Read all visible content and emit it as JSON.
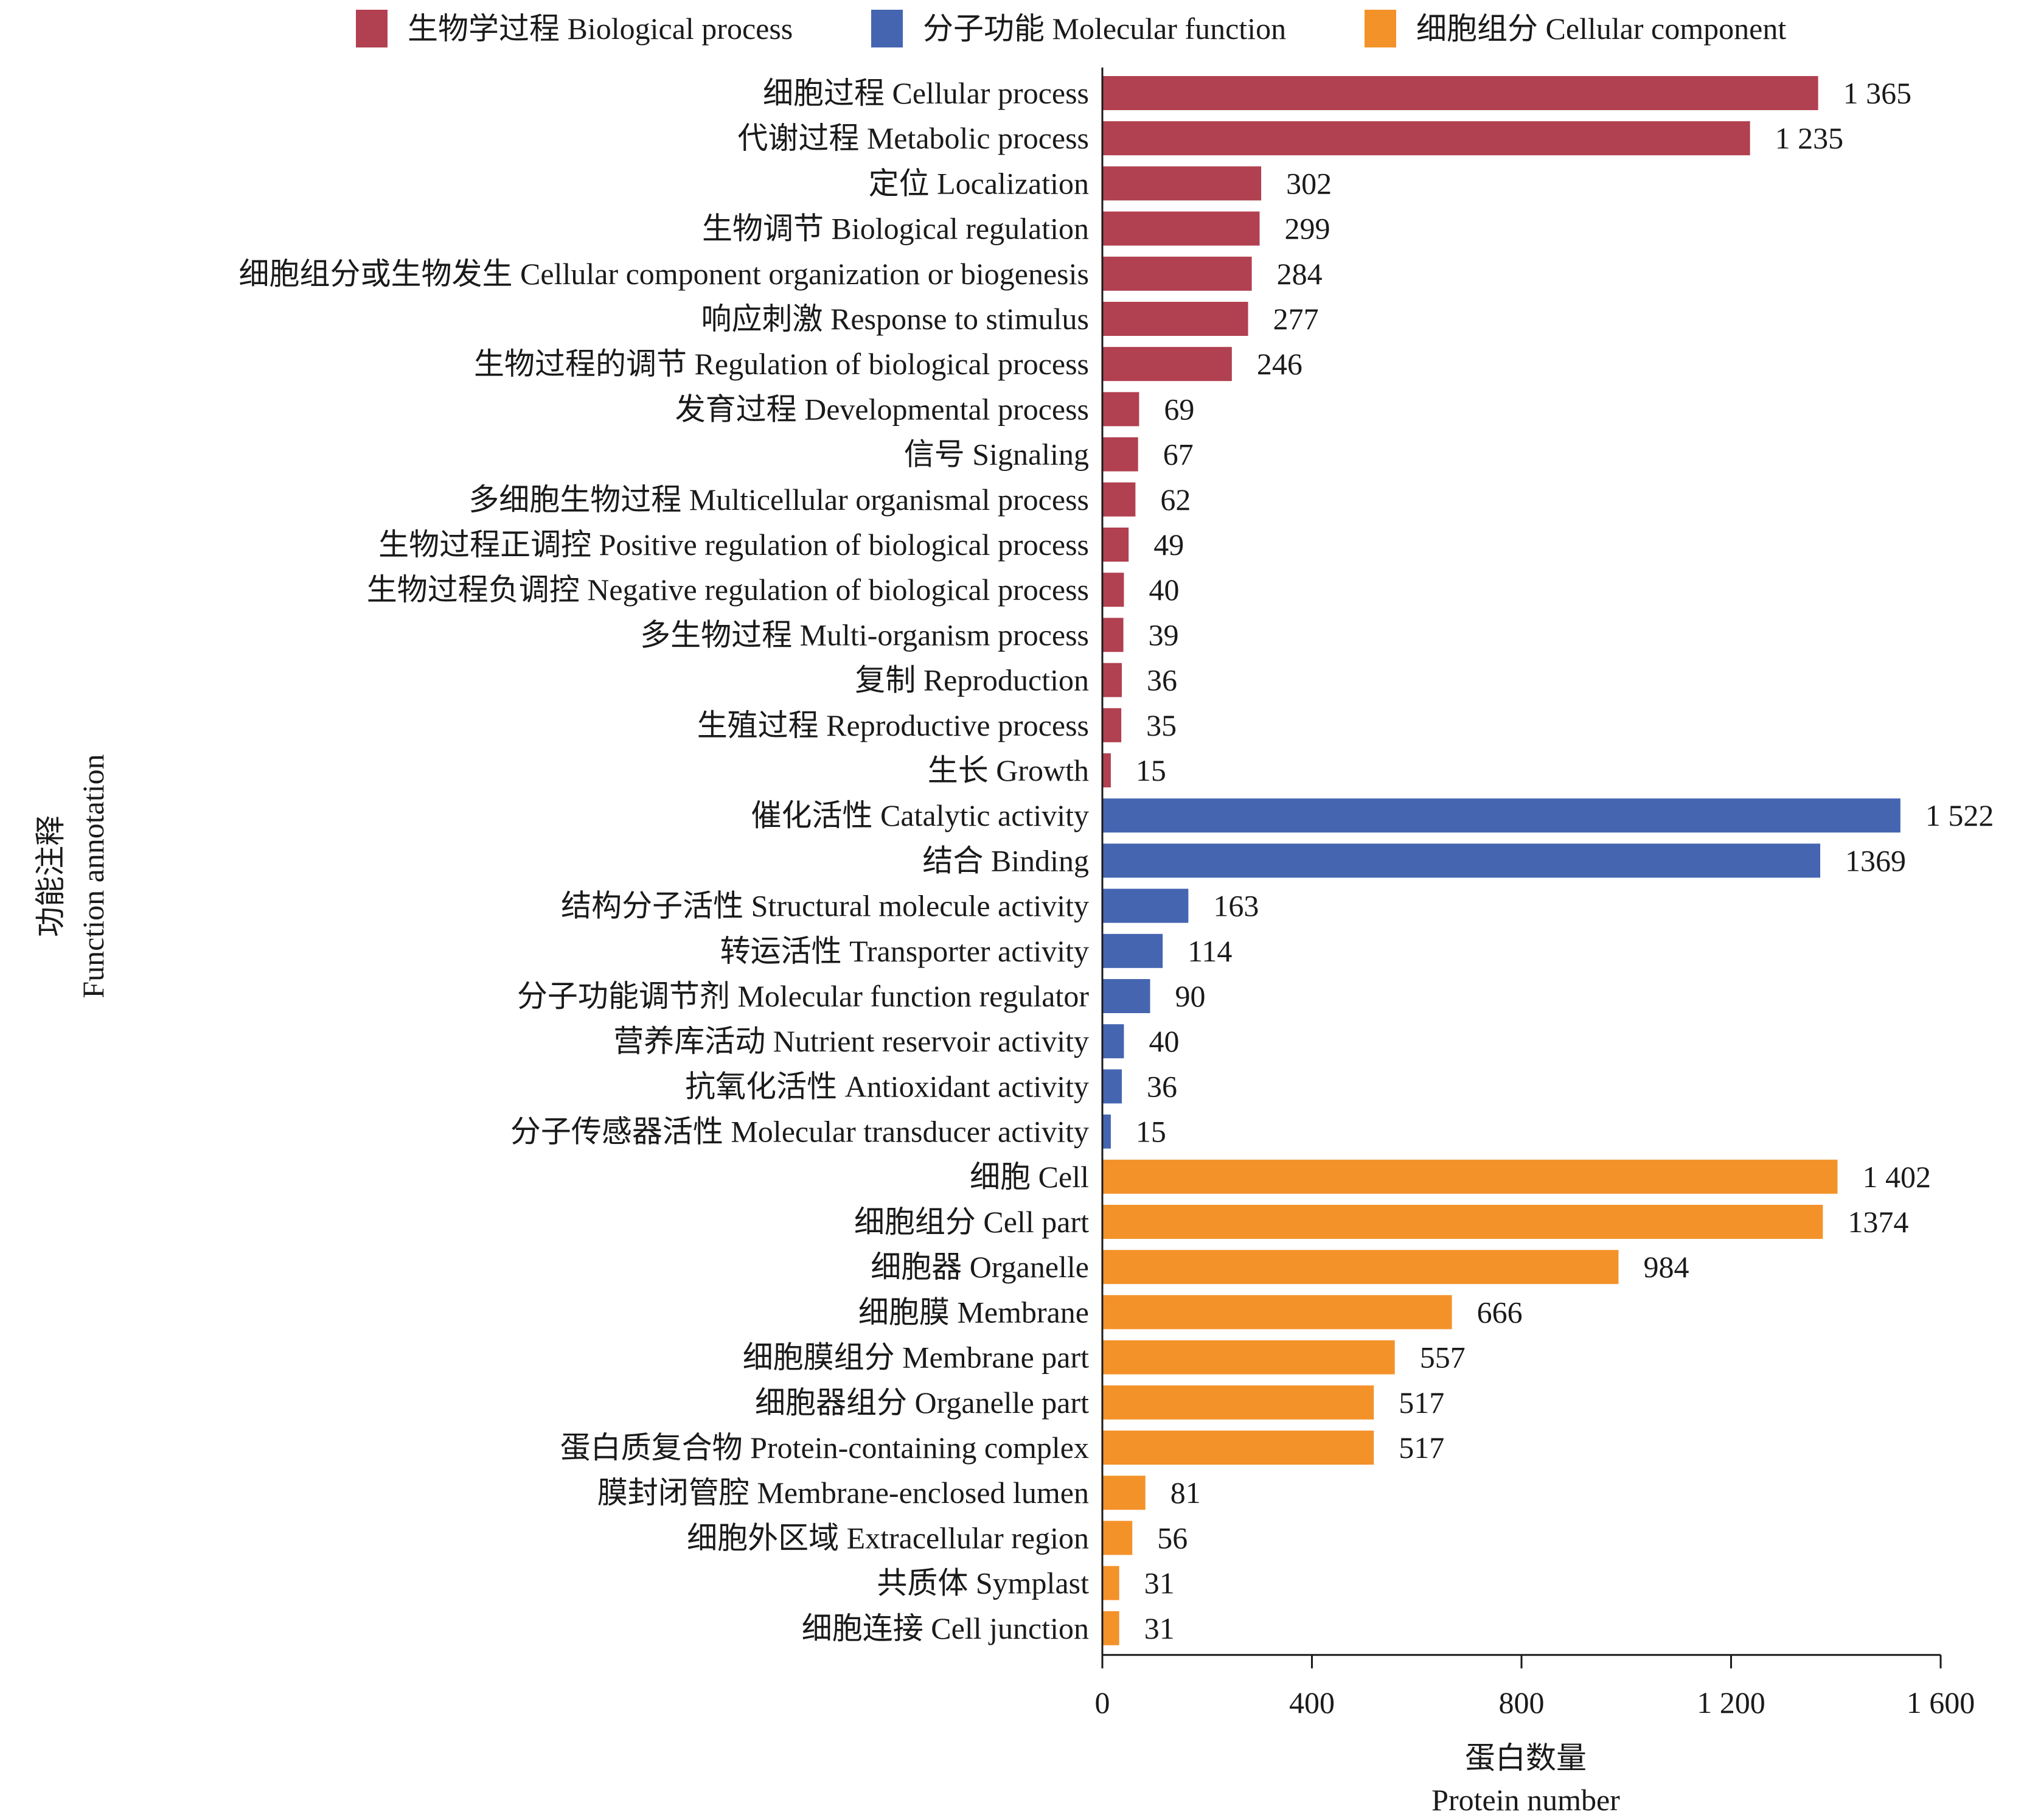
{
  "chart_data": {
    "type": "bar",
    "orientation": "horizontal",
    "title": "",
    "xlabel": "蛋白数量",
    "xlabel_en": "Protein number",
    "ylabel": "功能注释",
    "ylabel_en": "Function annotation",
    "xlim": [
      0,
      1600
    ],
    "xticks": [
      0,
      400,
      800,
      1200,
      1600
    ],
    "xtick_labels": [
      "0",
      "400",
      "800",
      "1 200",
      "1 600"
    ],
    "grid": false,
    "legend_position": "top",
    "series": [
      {
        "name": "生物学过程 Biological process",
        "color": "#b14050",
        "items": [
          {
            "label": "细胞过程 Cellular process",
            "value": 1365,
            "value_label": "1 365"
          },
          {
            "label": "代谢过程 Metabolic process",
            "value": 1235,
            "value_label": "1 235"
          },
          {
            "label": "定位 Localization",
            "value": 302,
            "value_label": "302"
          },
          {
            "label": "生物调节 Biological regulation",
            "value": 299,
            "value_label": "299"
          },
          {
            "label": "细胞组分或生物发生 Cellular component organization or biogenesis",
            "value": 284,
            "value_label": "284"
          },
          {
            "label": "响应刺激 Response to stimulus",
            "value": 277,
            "value_label": "277"
          },
          {
            "label": "生物过程的调节 Regulation of biological process",
            "value": 246,
            "value_label": "246"
          },
          {
            "label": "发育过程 Developmental process",
            "value": 69,
            "value_label": "69"
          },
          {
            "label": "信号 Signaling",
            "value": 67,
            "value_label": "67"
          },
          {
            "label": "多细胞生物过程 Multicellular organismal process",
            "value": 62,
            "value_label": "62"
          },
          {
            "label": "生物过程正调控 Positive regulation of biological process",
            "value": 49,
            "value_label": "49"
          },
          {
            "label": "生物过程负调控 Negative regulation of biological process",
            "value": 40,
            "value_label": "40"
          },
          {
            "label": "多生物过程 Multi-organism process",
            "value": 39,
            "value_label": "39"
          },
          {
            "label": "复制 Reproduction",
            "value": 36,
            "value_label": "36"
          },
          {
            "label": "生殖过程 Reproductive process",
            "value": 35,
            "value_label": "35"
          },
          {
            "label": "生长 Growth",
            "value": 15,
            "value_label": "15"
          }
        ]
      },
      {
        "name": "分子功能 Molecular function",
        "color": "#4565b1",
        "items": [
          {
            "label": "催化活性 Catalytic activity",
            "value": 1522,
            "value_label": "1 522"
          },
          {
            "label": "结合 Binding",
            "value": 1369,
            "value_label": "1369"
          },
          {
            "label": "结构分子活性 Structural molecule activity",
            "value": 163,
            "value_label": "163"
          },
          {
            "label": "转运活性 Transporter activity",
            "value": 114,
            "value_label": "114"
          },
          {
            "label": "分子功能调节剂 Molecular function regulator",
            "value": 90,
            "value_label": "90"
          },
          {
            "label": "营养库活动 Nutrient reservoir activity",
            "value": 40,
            "value_label": "40"
          },
          {
            "label": "抗氧化活性 Antioxidant activity",
            "value": 36,
            "value_label": "36"
          },
          {
            "label": "分子传感器活性 Molecular transducer activity",
            "value": 15,
            "value_label": "15"
          }
        ]
      },
      {
        "name": "细胞组分 Cellular component",
        "color": "#f4922a",
        "items": [
          {
            "label": "细胞 Cell",
            "value": 1402,
            "value_label": "1 402"
          },
          {
            "label": "细胞组分 Cell part",
            "value": 1374,
            "value_label": "1374"
          },
          {
            "label": "细胞器 Organelle",
            "value": 984,
            "value_label": "984"
          },
          {
            "label": "细胞膜 Membrane",
            "value": 666,
            "value_label": "666"
          },
          {
            "label": "细胞膜组分 Membrane part",
            "value": 557,
            "value_label": "557"
          },
          {
            "label": "细胞器组分 Organelle part",
            "value": 517,
            "value_label": "517"
          },
          {
            "label": "蛋白质复合物 Protein-containing complex",
            "value": 517,
            "value_label": "517"
          },
          {
            "label": "膜封闭管腔 Membrane-enclosed lumen",
            "value": 81,
            "value_label": "81"
          },
          {
            "label": "细胞外区域 Extracellular region",
            "value": 56,
            "value_label": "56"
          },
          {
            "label": "共质体 Symplast",
            "value": 31,
            "value_label": "31"
          },
          {
            "label": "细胞连接 Cell junction",
            "value": 31,
            "value_label": "31"
          }
        ]
      }
    ]
  }
}
